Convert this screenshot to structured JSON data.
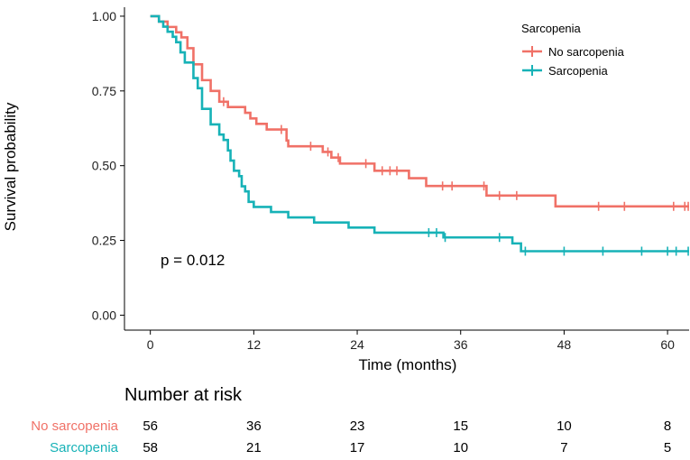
{
  "chart_data": {
    "type": "line",
    "subtype": "kaplan-meier",
    "ylabel": "Survival probability",
    "xlabel": "Time (months)",
    "xlim": [
      -3,
      62.5
    ],
    "ylim": [
      -0.05,
      1.03
    ],
    "x_ticks": [
      0,
      12,
      24,
      36,
      48,
      60
    ],
    "x_tick_labels": [
      "0",
      "12",
      "24",
      "36",
      "48",
      "60"
    ],
    "y_ticks": [
      0.0,
      0.25,
      0.5,
      0.75,
      1.0
    ],
    "y_tick_labels": [
      "0.00",
      "0.25",
      "0.50",
      "0.75",
      "1.00"
    ],
    "legend": {
      "title": "Sarcopenia",
      "position": "top-right",
      "entries": [
        "No sarcopenia",
        "Sarcopenia"
      ]
    },
    "annotation": "p = 0.012",
    "series": [
      {
        "name": "No sarcopenia",
        "color": "#F07167",
        "steps": [
          [
            0,
            1.0
          ],
          [
            1.0,
            0.982
          ],
          [
            2.0,
            0.964
          ],
          [
            3.0,
            0.946
          ],
          [
            3.6,
            0.929
          ],
          [
            4.3,
            0.893
          ],
          [
            5.0,
            0.839
          ],
          [
            6.0,
            0.786
          ],
          [
            7.0,
            0.75
          ],
          [
            8.0,
            0.714
          ],
          [
            9.0,
            0.696
          ],
          [
            11.0,
            0.677
          ],
          [
            11.6,
            0.658
          ],
          [
            12.3,
            0.64
          ],
          [
            13.5,
            0.621
          ],
          [
            15.8,
            0.584
          ],
          [
            16.0,
            0.565
          ],
          [
            20.0,
            0.546
          ],
          [
            21.0,
            0.527
          ],
          [
            22.0,
            0.507
          ],
          [
            26.0,
            0.483
          ],
          [
            30.0,
            0.458
          ],
          [
            32.0,
            0.432
          ],
          [
            39.0,
            0.4
          ],
          [
            47.0,
            0.364
          ]
        ],
        "censor_times": [
          8.5,
          15.2,
          18.6,
          20.6,
          21.8,
          25.0,
          26.9,
          27.8,
          28.6,
          33.9,
          35.0,
          38.7,
          40.5,
          42.5,
          52.0,
          55.0,
          60.7,
          62.0,
          62.4
        ]
      },
      {
        "name": "Sarcopenia",
        "color": "#17B2B7",
        "steps": [
          [
            0,
            1.0
          ],
          [
            1.0,
            0.982
          ],
          [
            1.5,
            0.965
          ],
          [
            2.0,
            0.948
          ],
          [
            2.6,
            0.931
          ],
          [
            3.0,
            0.913
          ],
          [
            3.5,
            0.879
          ],
          [
            4.0,
            0.845
          ],
          [
            5.0,
            0.793
          ],
          [
            5.5,
            0.759
          ],
          [
            6.0,
            0.69
          ],
          [
            7.0,
            0.638
          ],
          [
            8.0,
            0.604
          ],
          [
            8.5,
            0.586
          ],
          [
            9.0,
            0.551
          ],
          [
            9.3,
            0.517
          ],
          [
            9.7,
            0.483
          ],
          [
            10.3,
            0.465
          ],
          [
            10.6,
            0.431
          ],
          [
            11.0,
            0.414
          ],
          [
            11.4,
            0.379
          ],
          [
            12.0,
            0.362
          ],
          [
            14.0,
            0.345
          ],
          [
            16.0,
            0.327
          ],
          [
            19.0,
            0.31
          ],
          [
            23.0,
            0.293
          ],
          [
            26.0,
            0.276
          ],
          [
            34.0,
            0.26
          ],
          [
            42.0,
            0.24
          ],
          [
            43.0,
            0.214
          ]
        ],
        "censor_times": [
          32.3,
          33.2,
          34.2,
          40.5,
          43.5,
          48.0,
          52.5,
          57.0,
          60.0,
          61.0,
          62.4
        ]
      }
    ],
    "risk_table": {
      "title": "Number at risk",
      "times": [
        0,
        12,
        24,
        36,
        48,
        60
      ],
      "rows": [
        {
          "label": "No sarcopenia",
          "color": "#F07167",
          "values": [
            56,
            36,
            23,
            15,
            10,
            8
          ]
        },
        {
          "label": "Sarcopenia",
          "color": "#17B2B7",
          "values": [
            58,
            21,
            17,
            10,
            7,
            5
          ]
        }
      ]
    }
  }
}
